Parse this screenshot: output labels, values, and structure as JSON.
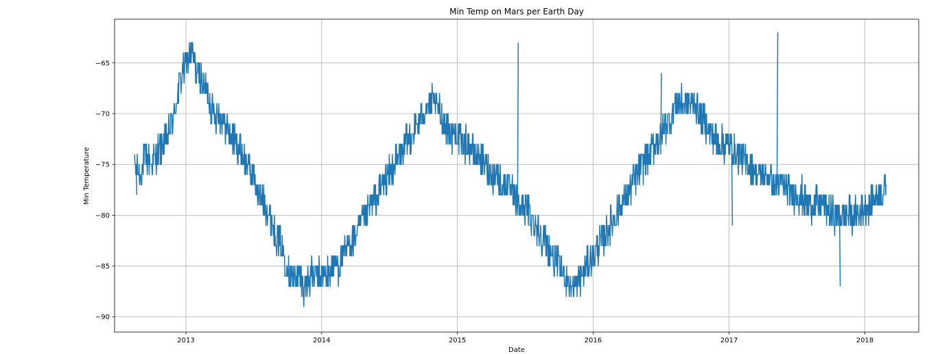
{
  "chart_data": {
    "type": "line",
    "title": "Min Temp on Mars per Earth Day",
    "xlabel": "Date",
    "ylabel": "Min Temperature",
    "x_tick_labels": [
      "2013",
      "2014",
      "2015",
      "2016",
      "2017",
      "2018"
    ],
    "y_tick_labels": [
      "−65",
      "−70",
      "−75",
      "−80",
      "−85",
      "−90"
    ],
    "x_ticks": [
      "2013-01-01",
      "2014-01-01",
      "2015-01-01",
      "2016-01-01",
      "2017-01-01",
      "2018-01-01"
    ],
    "y_ticks": [
      -65,
      -70,
      -75,
      -80,
      -85,
      -90
    ],
    "xlim": [
      "2012-06-23",
      "2018-05-26"
    ],
    "ylim": [
      -91.5,
      -60.7
    ],
    "grid": true,
    "line_color": "#1f77b4",
    "series": [
      {
        "x": [
          "2012-08-16",
          "2012-09-01",
          "2012-09-15",
          "2012-10-01",
          "2012-10-15",
          "2012-11-01",
          "2012-11-15",
          "2012-12-01",
          "2012-12-15",
          "2013-01-01",
          "2013-01-15",
          "2013-02-01",
          "2013-02-15",
          "2013-03-01",
          "2013-03-15",
          "2013-04-01",
          "2013-04-15",
          "2013-05-01",
          "2013-05-15",
          "2013-06-01",
          "2013-06-15",
          "2013-07-01",
          "2013-07-15",
          "2013-08-01",
          "2013-08-15",
          "2013-09-01",
          "2013-09-15",
          "2013-10-01",
          "2013-10-15",
          "2013-11-01",
          "2013-11-15",
          "2013-12-01",
          "2013-12-15",
          "2014-01-01",
          "2014-01-15",
          "2014-02-01",
          "2014-02-15",
          "2014-03-01",
          "2014-03-15",
          "2014-04-01",
          "2014-04-15",
          "2014-05-01",
          "2014-05-15",
          "2014-06-01",
          "2014-06-15",
          "2014-07-01",
          "2014-07-15",
          "2014-08-01",
          "2014-08-15",
          "2014-09-01",
          "2014-09-15",
          "2014-10-01",
          "2014-10-15",
          "2014-11-01",
          "2014-11-15",
          "2014-12-01",
          "2014-12-15",
          "2015-01-01",
          "2015-01-15",
          "2015-02-01",
          "2015-02-15",
          "2015-03-01",
          "2015-03-15",
          "2015-04-01",
          "2015-04-15",
          "2015-05-01",
          "2015-05-15",
          "2015-06-01",
          "2015-06-15",
          "2015-07-01",
          "2015-07-15",
          "2015-08-01",
          "2015-08-15",
          "2015-09-01",
          "2015-09-15",
          "2015-10-01",
          "2015-10-15",
          "2015-11-01",
          "2015-11-15",
          "2015-12-01",
          "2015-12-15",
          "2016-01-01",
          "2016-01-15",
          "2016-02-01",
          "2016-02-15",
          "2016-03-01",
          "2016-03-15",
          "2016-04-01",
          "2016-04-15",
          "2016-05-01",
          "2016-05-15",
          "2016-06-01",
          "2016-06-15",
          "2016-07-01",
          "2016-07-15",
          "2016-08-01",
          "2016-08-15",
          "2016-09-01",
          "2016-09-15",
          "2016-10-01",
          "2016-10-15",
          "2016-11-01",
          "2016-11-15",
          "2016-12-01",
          "2016-12-15",
          "2017-01-01",
          "2017-01-15",
          "2017-02-01",
          "2017-02-15",
          "2017-03-01",
          "2017-03-15",
          "2017-04-01",
          "2017-04-15",
          "2017-05-01",
          "2017-05-15",
          "2017-06-01",
          "2017-06-15",
          "2017-07-01",
          "2017-07-15",
          "2017-08-01",
          "2017-08-15",
          "2017-09-01",
          "2017-09-15",
          "2017-10-01",
          "2017-10-15",
          "2017-11-01",
          "2017-11-15",
          "2017-12-01",
          "2017-12-15",
          "2018-01-01",
          "2018-01-15",
          "2018-02-01",
          "2018-02-15",
          "2018-02-27"
        ],
        "y": [
          -75,
          -76,
          -74,
          -75,
          -74,
          -73,
          -72,
          -70,
          -67,
          -65,
          -64,
          -66,
          -67,
          -68,
          -70,
          -70,
          -71,
          -72,
          -73,
          -74,
          -75,
          -76,
          -78,
          -79,
          -80,
          -82,
          -83,
          -85,
          -86,
          -86,
          -87,
          -86,
          -86,
          -86,
          -86,
          -85,
          -85,
          -84,
          -83,
          -82,
          -81,
          -80,
          -79,
          -78,
          -77,
          -76,
          -75,
          -74,
          -73,
          -72,
          -71,
          -70,
          -69,
          -69,
          -70,
          -71,
          -72,
          -72,
          -73,
          -73,
          -74,
          -74,
          -75,
          -76,
          -76,
          -77,
          -77,
          -78,
          -79,
          -79,
          -80,
          -81,
          -82,
          -83,
          -84,
          -85,
          -86,
          -87,
          -87,
          -86,
          -85,
          -84,
          -83,
          -82,
          -81,
          -80,
          -79,
          -78,
          -77,
          -76,
          -75,
          -74,
          -73,
          -72,
          -71,
          -70,
          -69,
          -69,
          -69,
          -69,
          -70,
          -71,
          -72,
          -73,
          -73,
          -73,
          -74,
          -74,
          -75,
          -75,
          -76,
          -76,
          -76,
          -77,
          -77,
          -77,
          -78,
          -78,
          -78,
          -79,
          -79,
          -79,
          -79,
          -80,
          -80,
          -80,
          -80,
          -80,
          -80,
          -79,
          -79,
          -78,
          -78,
          -77
        ]
      }
    ]
  }
}
